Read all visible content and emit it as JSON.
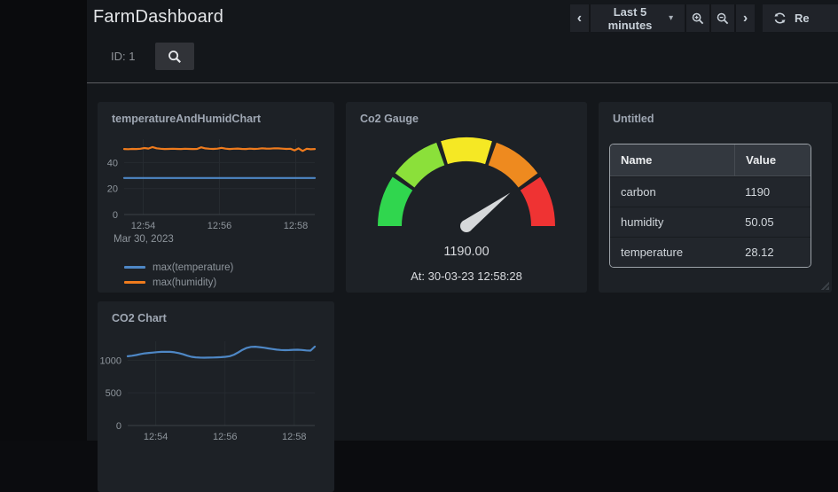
{
  "header": {
    "title": "FarmDashboard",
    "time_picker": {
      "range_label": "Last 5 minutes",
      "refresh_label": "Re"
    },
    "submenu": {
      "id_label": "ID: 1"
    }
  },
  "icons": {
    "chevron_left": "‹",
    "chevron_right": "›",
    "caret_down": "▾"
  },
  "panels": {
    "temp_humid": {
      "title": "temperatureAndHumidChart"
    },
    "co2_gauge": {
      "title": "Co2 Gauge"
    },
    "table": {
      "title": "Untitled"
    },
    "co2_chart": {
      "title": "CO2 Chart"
    }
  },
  "gauge": {
    "min": 0,
    "max": 1500,
    "value": 1190,
    "value_display": "1190.00",
    "at_label": "At: 30-03-23 12:58:28",
    "segment_colors": [
      "#30d64e",
      "#8be03a",
      "#f5e824",
      "#ee8a1f",
      "#ef3333"
    ],
    "needle_color": "#d6d8da"
  },
  "table": {
    "columns": {
      "name": "Name",
      "value": "Value"
    },
    "rows": [
      {
        "name": "carbon",
        "value": "1190"
      },
      {
        "name": "humidity",
        "value": "50.05"
      },
      {
        "name": "temperature",
        "value": "28.12"
      }
    ]
  },
  "chart_data": [
    {
      "type": "line",
      "title": "temperatureAndHumidChart",
      "x_ticks": [
        "12:54",
        "12:56",
        "12:58"
      ],
      "date_label": "Mar 30, 2023",
      "yticks": [
        0,
        20,
        40
      ],
      "ylim": [
        0,
        58
      ],
      "grid": true,
      "legend_position": "bottom-left",
      "series": [
        {
          "name": "max(temperature)",
          "color": "#4e87c5",
          "values": [
            28.1,
            28.1,
            28.1,
            28.1,
            28.1,
            28.1,
            28.1,
            28.1,
            28.1,
            28.1
          ]
        },
        {
          "name": "max(humidity)",
          "color": "#ef7b1d",
          "values": [
            50.4,
            50.3,
            50.5,
            50.4,
            50.6,
            51.2,
            50.8,
            51.9,
            51.0,
            50.6,
            50.4,
            50.5,
            50.6,
            50.5,
            50.4,
            50.6,
            50.5,
            50.4,
            50.5,
            51.7,
            50.9,
            50.6,
            50.5,
            50.7,
            51.3,
            50.7,
            50.4,
            50.6,
            50.8,
            50.5,
            50.4,
            50.7,
            50.5,
            50.6,
            51.0,
            50.8,
            50.7,
            51.0,
            50.9,
            50.7,
            50.5,
            50.6,
            49.4,
            50.9,
            48.9,
            50.6,
            50.2,
            50.4
          ]
        }
      ]
    },
    {
      "type": "line",
      "title": "CO2 Chart",
      "x_ticks": [
        "12:54",
        "12:56",
        "12:58"
      ],
      "yticks": [
        0,
        500,
        1000
      ],
      "ylim": [
        0,
        1290
      ],
      "grid": true,
      "series": [
        {
          "name": "co2",
          "color": "#4e87c5",
          "values": [
            1060,
            1068,
            1080,
            1095,
            1105,
            1112,
            1118,
            1124,
            1128,
            1130,
            1128,
            1122,
            1110,
            1092,
            1070,
            1052,
            1044,
            1040,
            1039,
            1040,
            1042,
            1044,
            1047,
            1052,
            1062,
            1085,
            1120,
            1160,
            1190,
            1205,
            1207,
            1200,
            1192,
            1182,
            1172,
            1163,
            1157,
            1154,
            1156,
            1159,
            1161,
            1157,
            1150,
            1147,
            1208
          ]
        }
      ]
    }
  ]
}
